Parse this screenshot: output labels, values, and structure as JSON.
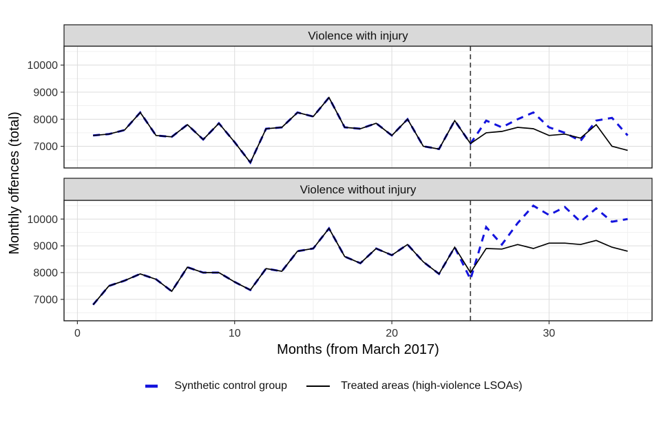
{
  "figure": {
    "ylab": "Monthly offences (total)",
    "xlab": "Months (from March 2017)"
  },
  "legend": {
    "items": [
      {
        "label": "Synthetic control group",
        "color": "#1414dd",
        "style": "dashed"
      },
      {
        "label": "Treated areas (high-violence LSOAs)",
        "color": "#000000",
        "style": "solid"
      }
    ]
  },
  "chart_data": [
    {
      "type": "line",
      "facet_title": "Violence with injury",
      "x": [
        1,
        2,
        3,
        4,
        5,
        6,
        7,
        8,
        9,
        10,
        11,
        12,
        13,
        14,
        15,
        16,
        17,
        18,
        19,
        20,
        21,
        22,
        23,
        24,
        25,
        26,
        27,
        28,
        29,
        30,
        31,
        32,
        33,
        34,
        35
      ],
      "series": [
        {
          "name": "Synthetic control group",
          "style": "dashed",
          "color": "#1414dd",
          "values": [
            7400,
            7450,
            7600,
            8250,
            7400,
            7350,
            7800,
            7250,
            7850,
            7150,
            6400,
            7650,
            7700,
            8250,
            8100,
            8800,
            7700,
            7650,
            7850,
            7400,
            8000,
            7000,
            6900,
            7950,
            7100,
            7950,
            7700,
            8000,
            8250,
            7700,
            7500,
            7200,
            7950,
            8050,
            7400
          ]
        },
        {
          "name": "Treated areas (high-violence LSOAs)",
          "style": "solid",
          "color": "#000000",
          "values": [
            7400,
            7450,
            7600,
            8250,
            7400,
            7350,
            7800,
            7250,
            7850,
            7150,
            6400,
            7650,
            7700,
            8250,
            8100,
            8800,
            7700,
            7650,
            7850,
            7400,
            8000,
            7000,
            6900,
            7950,
            7100,
            7500,
            7550,
            7700,
            7650,
            7400,
            7450,
            7300,
            7800,
            7000,
            6850
          ]
        }
      ],
      "xlim": [
        -0.85,
        36.55
      ],
      "ylim": [
        6200,
        10700
      ],
      "x_ticks": [
        0,
        10,
        20,
        30
      ],
      "y_ticks": [
        7000,
        8000,
        9000,
        10000
      ],
      "grid": "on",
      "vline": {
        "x": 25,
        "style": "dashed",
        "color": "#3d3d3d"
      }
    },
    {
      "type": "line",
      "facet_title": "Violence without injury",
      "x": [
        1,
        2,
        3,
        4,
        5,
        6,
        7,
        8,
        9,
        10,
        11,
        12,
        13,
        14,
        15,
        16,
        17,
        18,
        19,
        20,
        21,
        22,
        23,
        24,
        25,
        26,
        27,
        28,
        29,
        30,
        31,
        32,
        33,
        34,
        35
      ],
      "series": [
        {
          "name": "Synthetic control group",
          "style": "dashed",
          "color": "#1414dd",
          "values": [
            6800,
            7500,
            7700,
            7950,
            7750,
            7300,
            8200,
            8000,
            8000,
            7650,
            7350,
            8150,
            8050,
            8800,
            8900,
            9650,
            8600,
            8350,
            8900,
            8650,
            9050,
            8400,
            7950,
            8950,
            7750,
            9700,
            9050,
            9850,
            10500,
            10150,
            10450,
            9900,
            10400,
            9900,
            10000
          ]
        },
        {
          "name": "Treated areas (high-violence LSOAs)",
          "style": "solid",
          "color": "#000000",
          "values": [
            6800,
            7500,
            7700,
            7950,
            7750,
            7300,
            8200,
            8000,
            8000,
            7650,
            7350,
            8150,
            8050,
            8800,
            8900,
            9650,
            8600,
            8350,
            8900,
            8650,
            9050,
            8400,
            7950,
            8950,
            8000,
            8900,
            8880,
            9050,
            8900,
            9100,
            9100,
            9050,
            9200,
            8950,
            8800
          ]
        }
      ],
      "xlim": [
        -0.85,
        36.55
      ],
      "ylim": [
        6200,
        10700
      ],
      "x_ticks": [
        0,
        10,
        20,
        30
      ],
      "y_ticks": [
        7000,
        8000,
        9000,
        10000
      ],
      "grid": "on",
      "vline": {
        "x": 25,
        "style": "dashed",
        "color": "#3d3d3d"
      }
    }
  ]
}
